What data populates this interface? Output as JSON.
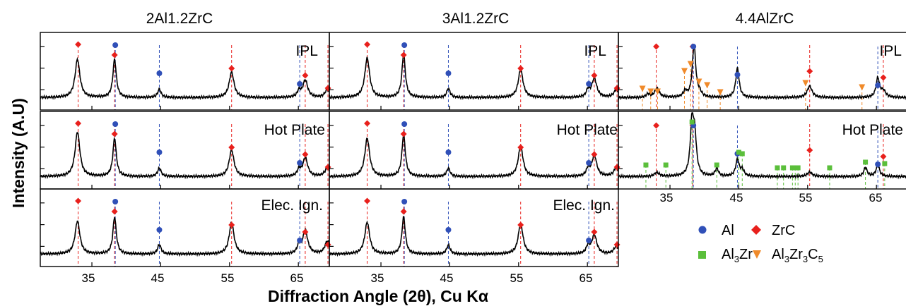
{
  "figure": {
    "column_titles": [
      "2Al1.2ZrC",
      "3Al1.2ZrC",
      "4.4AlZrC"
    ],
    "row_labels": [
      "IPL",
      "Hot Plate",
      "Elec. Ign."
    ],
    "xlabel": "Diffraction Angle  (2θ), Cu Kα",
    "ylabel": "Intensity (A.U)"
  },
  "colors": {
    "Al": "#3050b8",
    "ZrC": "#e8201c",
    "Al3Zr": "#5bbf3b",
    "Al3Zr3C5": "#f08a2a",
    "trace": "#000000"
  },
  "legend": {
    "items": [
      {
        "key": "Al",
        "label": "Al",
        "marker": "circle"
      },
      {
        "key": "ZrC",
        "label": "ZrC",
        "marker": "diamond"
      },
      {
        "key": "Al3Zr",
        "label": "Al",
        "sub": "3",
        "rest": "Zr",
        "marker": "square"
      },
      {
        "key": "Al3Zr3C5",
        "label": "Al",
        "sub1": "3",
        "mid": "Zr",
        "sub2": "3",
        "mid2": "C",
        "sub3": "5",
        "marker": "triangle-down"
      }
    ]
  },
  "chart_data": {
    "type": "line",
    "x_range": [
      27.5,
      69.5
    ],
    "xticks": [
      "35",
      "45",
      "55",
      "65"
    ],
    "reference_lines": {
      "ZrC": [
        33.0,
        38.3,
        55.3,
        66.0,
        69.3
      ],
      "Al": [
        38.4,
        44.8,
        65.2
      ]
    },
    "phase_markers": {
      "Al3Zr": [
        31.5,
        34.4,
        38.2,
        41.8,
        45.0,
        45.5,
        50.6,
        51.5,
        52.8,
        53.2,
        53.6,
        58.2,
        63.4,
        66.2
      ],
      "Al3Zr3C5": [
        31.0,
        32.2,
        33.2,
        37.1,
        38.0,
        39.2,
        40.4,
        42.3,
        54.7,
        62.9
      ]
    },
    "panels": [
      {
        "column": "2Al1.2ZrC",
        "row": "IPL",
        "peaks": [
          {
            "phase": "ZrC",
            "x": 32.9,
            "intensity": 0.6
          },
          {
            "phase": "Al",
            "x": 38.3,
            "intensity": 0.6
          },
          {
            "phase": "Al",
            "x": 44.8,
            "intensity": 0.13
          },
          {
            "phase": "ZrC",
            "x": 55.3,
            "intensity": 0.4
          },
          {
            "phase": "Al",
            "x": 65.1,
            "intensity": 0.1
          },
          {
            "phase": "ZrC",
            "x": 66.0,
            "intensity": 0.27
          },
          {
            "phase": "ZrC",
            "x": 69.2,
            "intensity": 0.12
          }
        ]
      },
      {
        "column": "2Al1.2ZrC",
        "row": "Hot Plate",
        "peaks": [
          {
            "phase": "ZrC",
            "x": 32.9,
            "intensity": 0.7
          },
          {
            "phase": "Al",
            "x": 38.3,
            "intensity": 0.6
          },
          {
            "phase": "Al",
            "x": 44.8,
            "intensity": 0.13
          },
          {
            "phase": "ZrC",
            "x": 55.3,
            "intensity": 0.42
          },
          {
            "phase": "Al",
            "x": 65.1,
            "intensity": 0.1
          },
          {
            "phase": "ZrC",
            "x": 66.0,
            "intensity": 0.29
          },
          {
            "phase": "ZrC",
            "x": 69.2,
            "intensity": 0.13
          }
        ]
      },
      {
        "column": "2Al1.2ZrC",
        "row": "Elec. Ign.",
        "peaks": [
          {
            "phase": "ZrC",
            "x": 32.9,
            "intensity": 0.52
          },
          {
            "phase": "Al",
            "x": 38.3,
            "intensity": 0.58
          },
          {
            "phase": "Al",
            "x": 44.8,
            "intensity": 0.15
          },
          {
            "phase": "ZrC",
            "x": 55.3,
            "intensity": 0.5
          },
          {
            "phase": "Al",
            "x": 65.1,
            "intensity": 0.13
          },
          {
            "phase": "ZrC",
            "x": 66.0,
            "intensity": 0.37
          },
          {
            "phase": "ZrC",
            "x": 69.2,
            "intensity": 0.2
          }
        ]
      },
      {
        "column": "3Al1.2ZrC",
        "row": "IPL",
        "peaks": [
          {
            "phase": "ZrC",
            "x": 33.0,
            "intensity": 0.62
          },
          {
            "phase": "Al",
            "x": 38.3,
            "intensity": 0.68
          },
          {
            "phase": "Al",
            "x": 44.8,
            "intensity": 0.14
          },
          {
            "phase": "ZrC",
            "x": 55.3,
            "intensity": 0.44
          },
          {
            "phase": "Al",
            "x": 65.1,
            "intensity": 0.11
          },
          {
            "phase": "ZrC",
            "x": 66.0,
            "intensity": 0.3
          },
          {
            "phase": "ZrC",
            "x": 69.2,
            "intensity": 0.12
          }
        ]
      },
      {
        "column": "3Al1.2ZrC",
        "row": "Hot Plate",
        "peaks": [
          {
            "phase": "ZrC",
            "x": 33.0,
            "intensity": 0.6
          },
          {
            "phase": "Al",
            "x": 38.3,
            "intensity": 0.66
          },
          {
            "phase": "Al",
            "x": 44.8,
            "intensity": 0.13
          },
          {
            "phase": "ZrC",
            "x": 55.3,
            "intensity": 0.48
          },
          {
            "phase": "Al",
            "x": 65.1,
            "intensity": 0.11
          },
          {
            "phase": "ZrC",
            "x": 66.0,
            "intensity": 0.33
          },
          {
            "phase": "ZrC",
            "x": 69.2,
            "intensity": 0.14
          }
        ]
      },
      {
        "column": "3Al1.2ZrC",
        "row": "Elec. Ign.",
        "peaks": [
          {
            "phase": "ZrC",
            "x": 33.0,
            "intensity": 0.5
          },
          {
            "phase": "Al",
            "x": 38.3,
            "intensity": 0.58
          },
          {
            "phase": "Al",
            "x": 44.8,
            "intensity": 0.14
          },
          {
            "phase": "ZrC",
            "x": 55.3,
            "intensity": 0.48
          },
          {
            "phase": "Al",
            "x": 65.1,
            "intensity": 0.12
          },
          {
            "phase": "ZrC",
            "x": 66.0,
            "intensity": 0.3
          },
          {
            "phase": "ZrC",
            "x": 69.2,
            "intensity": 0.12
          }
        ]
      },
      {
        "column": "4.4AlZrC",
        "row": "IPL",
        "peaks": [
          {
            "phase": "Al3Zr3C5",
            "x": 31.8,
            "intensity": 0.05
          },
          {
            "phase": "ZrC",
            "x": 33.1,
            "intensity": 0.14
          },
          {
            "phase": "Al3Zr3C5",
            "x": 37.2,
            "intensity": 0.09
          },
          {
            "phase": "Al",
            "x": 38.5,
            "intensity": 0.82
          },
          {
            "phase": "Al3Zr3C5",
            "x": 39.3,
            "intensity": 0.06
          },
          {
            "phase": "Al",
            "x": 44.8,
            "intensity": 0.46
          },
          {
            "phase": "ZrC",
            "x": 55.3,
            "intensity": 0.18
          },
          {
            "phase": "Al",
            "x": 65.2,
            "intensity": 0.3
          },
          {
            "phase": "ZrC",
            "x": 66.0,
            "intensity": 0.1
          }
        ]
      },
      {
        "column": "4.4AlZrC",
        "row": "Hot Plate",
        "peaks": [
          {
            "phase": "ZrC",
            "x": 33.1,
            "intensity": 0.06
          },
          {
            "phase": "Al3Zr",
            "x": 38.2,
            "intensity": 0.82
          },
          {
            "phase": "Al",
            "x": 38.6,
            "intensity": 0.55
          },
          {
            "phase": "Al3Zr",
            "x": 41.8,
            "intensity": 0.12
          },
          {
            "phase": "Al",
            "x": 44.8,
            "intensity": 0.26
          },
          {
            "phase": "Al3Zr",
            "x": 45.5,
            "intensity": 0.1
          },
          {
            "phase": "ZrC",
            "x": 55.3,
            "intensity": 0.07
          },
          {
            "phase": "Al3Zr",
            "x": 63.4,
            "intensity": 0.14
          },
          {
            "phase": "Al",
            "x": 65.2,
            "intensity": 0.18
          }
        ]
      }
    ]
  }
}
